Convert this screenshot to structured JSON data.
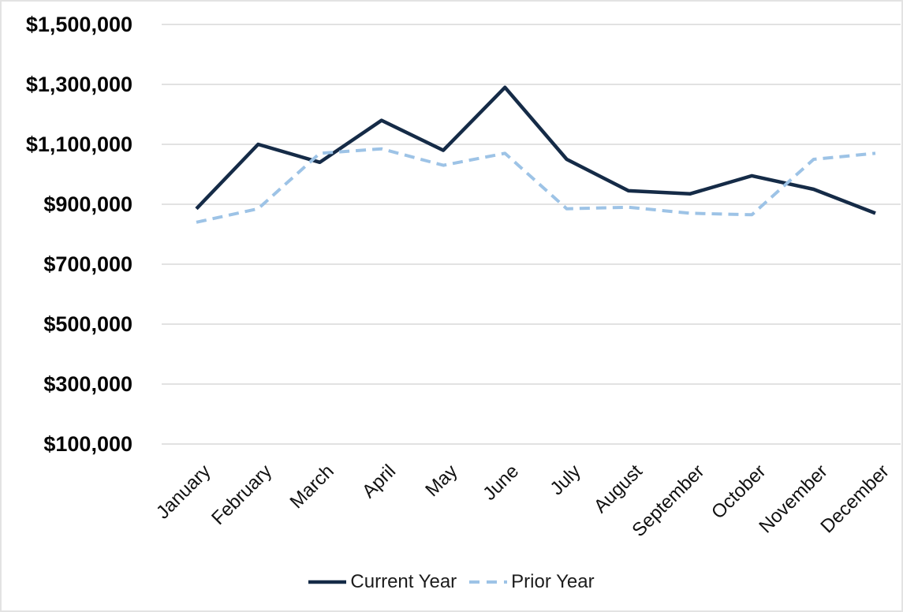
{
  "chart_data": {
    "type": "line",
    "title": "",
    "xlabel": "",
    "ylabel": "",
    "categories": [
      "January",
      "February",
      "March",
      "April",
      "May",
      "June",
      "July",
      "August",
      "September",
      "October",
      "November",
      "December"
    ],
    "series": [
      {
        "name": "Current Year",
        "style": "solid",
        "color": "#152b47",
        "values": [
          885000,
          1100000,
          1040000,
          1180000,
          1080000,
          1290000,
          1050000,
          945000,
          935000,
          995000,
          950000,
          870000
        ]
      },
      {
        "name": "Prior Year",
        "style": "dashed",
        "color": "#9dc3e6",
        "values": [
          840000,
          885000,
          1070000,
          1085000,
          1030000,
          1070000,
          885000,
          890000,
          870000,
          865000,
          1050000,
          1070000
        ]
      }
    ],
    "y_axis": {
      "min": 100000,
      "max": 1500000,
      "step": 200000,
      "tick_labels": [
        "$1,500,000",
        "$1,300,000",
        "$1,100,000",
        "$900,000",
        "$700,000",
        "$500,000",
        "$300,000",
        "$100,000"
      ]
    },
    "grid": true,
    "gridline_color": "#d9d9d9",
    "legend_position": "bottom"
  }
}
